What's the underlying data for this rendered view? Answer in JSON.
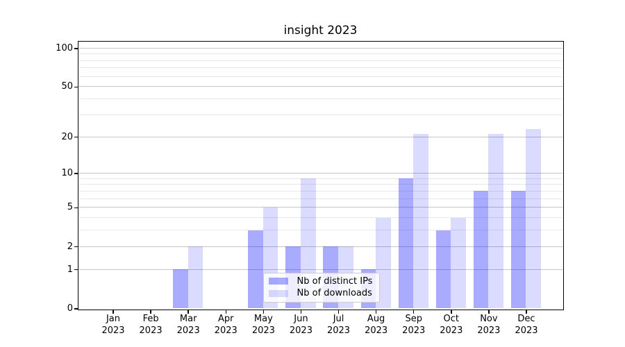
{
  "chart_data": {
    "type": "bar",
    "title": "insight 2023",
    "xlabel": "",
    "ylabel": "",
    "categories": [
      "Jan",
      "Feb",
      "Mar",
      "Apr",
      "May",
      "Jun",
      "Jul",
      "Aug",
      "Sep",
      "Oct",
      "Nov",
      "Dec"
    ],
    "year_label": "2023",
    "series": [
      {
        "name": "Nb of distinct IPs",
        "color": "rgba(10,14,252,0.35)",
        "color_hex": "#a9abfc",
        "values": [
          0,
          0,
          1,
          0,
          3,
          2,
          2,
          1,
          9,
          3,
          7,
          7
        ]
      },
      {
        "name": "Nb of downloads",
        "color": "rgba(10,14,252,0.15)",
        "color_hex": "#dadbfd",
        "values": [
          0,
          0,
          2,
          0,
          5,
          9,
          2,
          4,
          21,
          4,
          21,
          23
        ]
      }
    ],
    "yscale": "log1p (symlog-like: position proportional to log10(1+v))",
    "ylim": [
      0,
      113
    ],
    "y_major_ticks": [
      0,
      1,
      2,
      5,
      10,
      20,
      50,
      100
    ],
    "y_minor_ticks": [
      3,
      4,
      6,
      7,
      8,
      9,
      30,
      40,
      60,
      70,
      80,
      90
    ],
    "grid": "horizontal major and minor gridlines",
    "legend_position": "inside lower-center-left"
  },
  "colors": {
    "background": "#ffffff",
    "axis": "#000000",
    "grid_major": "#c6c6c6",
    "grid_minor": "#e8e8e8",
    "legend_bg": "rgba(255,255,255,0.8)",
    "legend_border": "#cccccc",
    "text": "#000000"
  }
}
